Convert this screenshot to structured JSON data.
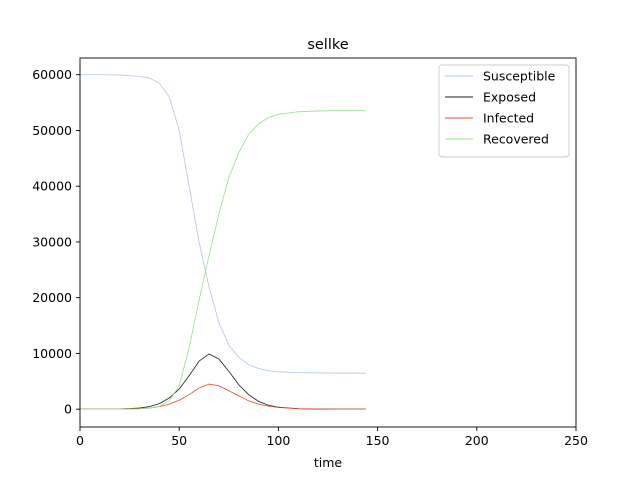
{
  "chart_data": {
    "type": "line",
    "title": "sellke",
    "xlabel": "time",
    "ylabel": "",
    "xlim": [
      0,
      250
    ],
    "ylim": [
      -3200,
      63000
    ],
    "xticks": [
      0,
      50,
      100,
      150,
      200,
      250
    ],
    "yticks": [
      0,
      10000,
      20000,
      30000,
      40000,
      50000,
      60000
    ],
    "grid": false,
    "legend_position": "top-right",
    "series": [
      {
        "name": "Susceptible",
        "color": "#aec7e8",
        "x": [
          0,
          10,
          20,
          30,
          35,
          40,
          45,
          50,
          55,
          60,
          65,
          70,
          75,
          80,
          85,
          90,
          95,
          100,
          110,
          120,
          130,
          144
        ],
        "y": [
          60000,
          59990,
          59950,
          59700,
          59400,
          58500,
          56000,
          50000,
          40000,
          30000,
          22000,
          15500,
          11500,
          9300,
          8000,
          7300,
          6900,
          6700,
          6550,
          6500,
          6480,
          6450
        ]
      },
      {
        "name": "Exposed",
        "color": "#1f1f1f",
        "x": [
          0,
          10,
          20,
          30,
          35,
          40,
          45,
          50,
          55,
          60,
          65,
          70,
          75,
          80,
          85,
          90,
          95,
          100,
          110,
          120,
          130,
          144
        ],
        "y": [
          0,
          10,
          40,
          200,
          450,
          1000,
          2000,
          3600,
          6000,
          8600,
          9900,
          9000,
          6800,
          4400,
          2600,
          1400,
          700,
          350,
          80,
          20,
          5,
          0
        ]
      },
      {
        "name": "Infected",
        "color": "#e8492c",
        "x": [
          0,
          10,
          20,
          30,
          35,
          40,
          45,
          50,
          55,
          60,
          65,
          70,
          75,
          80,
          85,
          90,
          95,
          100,
          110,
          120,
          130,
          144
        ],
        "y": [
          0,
          5,
          20,
          90,
          200,
          450,
          900,
          1600,
          2600,
          3800,
          4500,
          4200,
          3300,
          2400,
          1500,
          900,
          550,
          300,
          100,
          30,
          10,
          0
        ]
      },
      {
        "name": "Recovered",
        "color": "#98df8a",
        "x": [
          0,
          10,
          20,
          30,
          35,
          40,
          45,
          50,
          55,
          60,
          65,
          70,
          75,
          80,
          85,
          90,
          95,
          100,
          110,
          120,
          130,
          144
        ],
        "y": [
          0,
          0,
          20,
          80,
          200,
          500,
          1500,
          4200,
          11000,
          19500,
          27500,
          35000,
          41500,
          46000,
          49300,
          51200,
          52300,
          52900,
          53350,
          53500,
          53550,
          53550
        ]
      }
    ]
  }
}
